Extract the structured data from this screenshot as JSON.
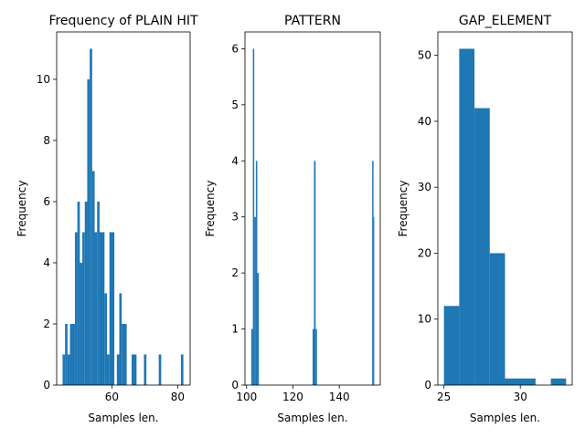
{
  "figure": {
    "background": "#ffffff"
  },
  "chart_data": [
    {
      "type": "bar",
      "title": "Frequency of PLAIN HIT",
      "xlabel": "Samples len.",
      "ylabel": "Frequency",
      "xlim": [
        43.2,
        83.8
      ],
      "ylim": [
        0,
        11.55
      ],
      "xticks": [
        60,
        80
      ],
      "yticks": [
        0,
        2,
        4,
        6,
        8,
        10
      ],
      "color": "#1f77b4",
      "bins": [
        {
          "x0": 45.0,
          "x1": 45.75,
          "count": 1
        },
        {
          "x0": 45.75,
          "x1": 46.5,
          "count": 2
        },
        {
          "x0": 46.5,
          "x1": 47.25,
          "count": 1
        },
        {
          "x0": 47.25,
          "x1": 48.75,
          "count": 2
        },
        {
          "x0": 48.75,
          "x1": 49.5,
          "count": 5
        },
        {
          "x0": 49.5,
          "x1": 50.25,
          "count": 6
        },
        {
          "x0": 50.25,
          "x1": 51.0,
          "count": 4
        },
        {
          "x0": 51.0,
          "x1": 51.75,
          "count": 5
        },
        {
          "x0": 51.75,
          "x1": 52.5,
          "count": 6
        },
        {
          "x0": 52.5,
          "x1": 53.25,
          "count": 10
        },
        {
          "x0": 53.25,
          "x1": 54.0,
          "count": 11
        },
        {
          "x0": 54.0,
          "x1": 54.75,
          "count": 7
        },
        {
          "x0": 54.75,
          "x1": 55.5,
          "count": 5
        },
        {
          "x0": 55.5,
          "x1": 56.25,
          "count": 6
        },
        {
          "x0": 56.25,
          "x1": 57.75,
          "count": 5
        },
        {
          "x0": 57.75,
          "x1": 58.5,
          "count": 3
        },
        {
          "x0": 58.5,
          "x1": 59.25,
          "count": 1
        },
        {
          "x0": 59.25,
          "x1": 60.75,
          "count": 5
        },
        {
          "x0": 61.5,
          "x1": 62.25,
          "count": 1
        },
        {
          "x0": 62.25,
          "x1": 63.0,
          "count": 3
        },
        {
          "x0": 63.0,
          "x1": 64.5,
          "count": 2
        },
        {
          "x0": 66.0,
          "x1": 67.5,
          "count": 1
        },
        {
          "x0": 69.75,
          "x1": 70.5,
          "count": 1
        },
        {
          "x0": 74.25,
          "x1": 75.0,
          "count": 1
        },
        {
          "x0": 81.0,
          "x1": 81.75,
          "count": 1
        }
      ]
    },
    {
      "type": "bar",
      "title": "PATTERN",
      "xlabel": "Samples len.",
      "ylabel": "Frequency",
      "xlim": [
        99.3,
        157.7
      ],
      "ylim": [
        0,
        6.3
      ],
      "xticks": [
        100,
        120,
        140
      ],
      "yticks": [
        0,
        1,
        2,
        3,
        4,
        5,
        6
      ],
      "color": "#1f77b4",
      "bins": [
        {
          "x0": 102.0,
          "x1": 102.7,
          "count": 1
        },
        {
          "x0": 102.7,
          "x1": 103.3,
          "count": 6
        },
        {
          "x0": 103.3,
          "x1": 104.0,
          "count": 3
        },
        {
          "x0": 104.0,
          "x1": 104.6,
          "count": 4
        },
        {
          "x0": 104.6,
          "x1": 105.3,
          "count": 2
        },
        {
          "x0": 128.5,
          "x1": 129.1,
          "count": 1
        },
        {
          "x0": 129.1,
          "x1": 129.8,
          "count": 4
        },
        {
          "x0": 129.8,
          "x1": 130.4,
          "count": 1
        },
        {
          "x0": 154.2,
          "x1": 154.8,
          "count": 4
        },
        {
          "x0": 154.8,
          "x1": 155.0,
          "count": 3
        }
      ]
    },
    {
      "type": "bar",
      "title": "GAP_ELEMENT",
      "xlabel": "Samples len.",
      "ylabel": "Frequency",
      "xlim": [
        24.6,
        33.4
      ],
      "ylim": [
        0,
        53.55
      ],
      "xticks": [
        25,
        30
      ],
      "yticks": [
        0,
        10,
        20,
        30,
        40,
        50
      ],
      "color": "#1f77b4",
      "bins": [
        {
          "x0": 25.0,
          "x1": 26.0,
          "count": 12
        },
        {
          "x0": 26.0,
          "x1": 27.0,
          "count": 51
        },
        {
          "x0": 27.0,
          "x1": 28.0,
          "count": 42
        },
        {
          "x0": 28.0,
          "x1": 29.0,
          "count": 20
        },
        {
          "x0": 29.0,
          "x1": 31.0,
          "count": 1
        },
        {
          "x0": 32.0,
          "x1": 33.0,
          "count": 1
        }
      ]
    }
  ]
}
